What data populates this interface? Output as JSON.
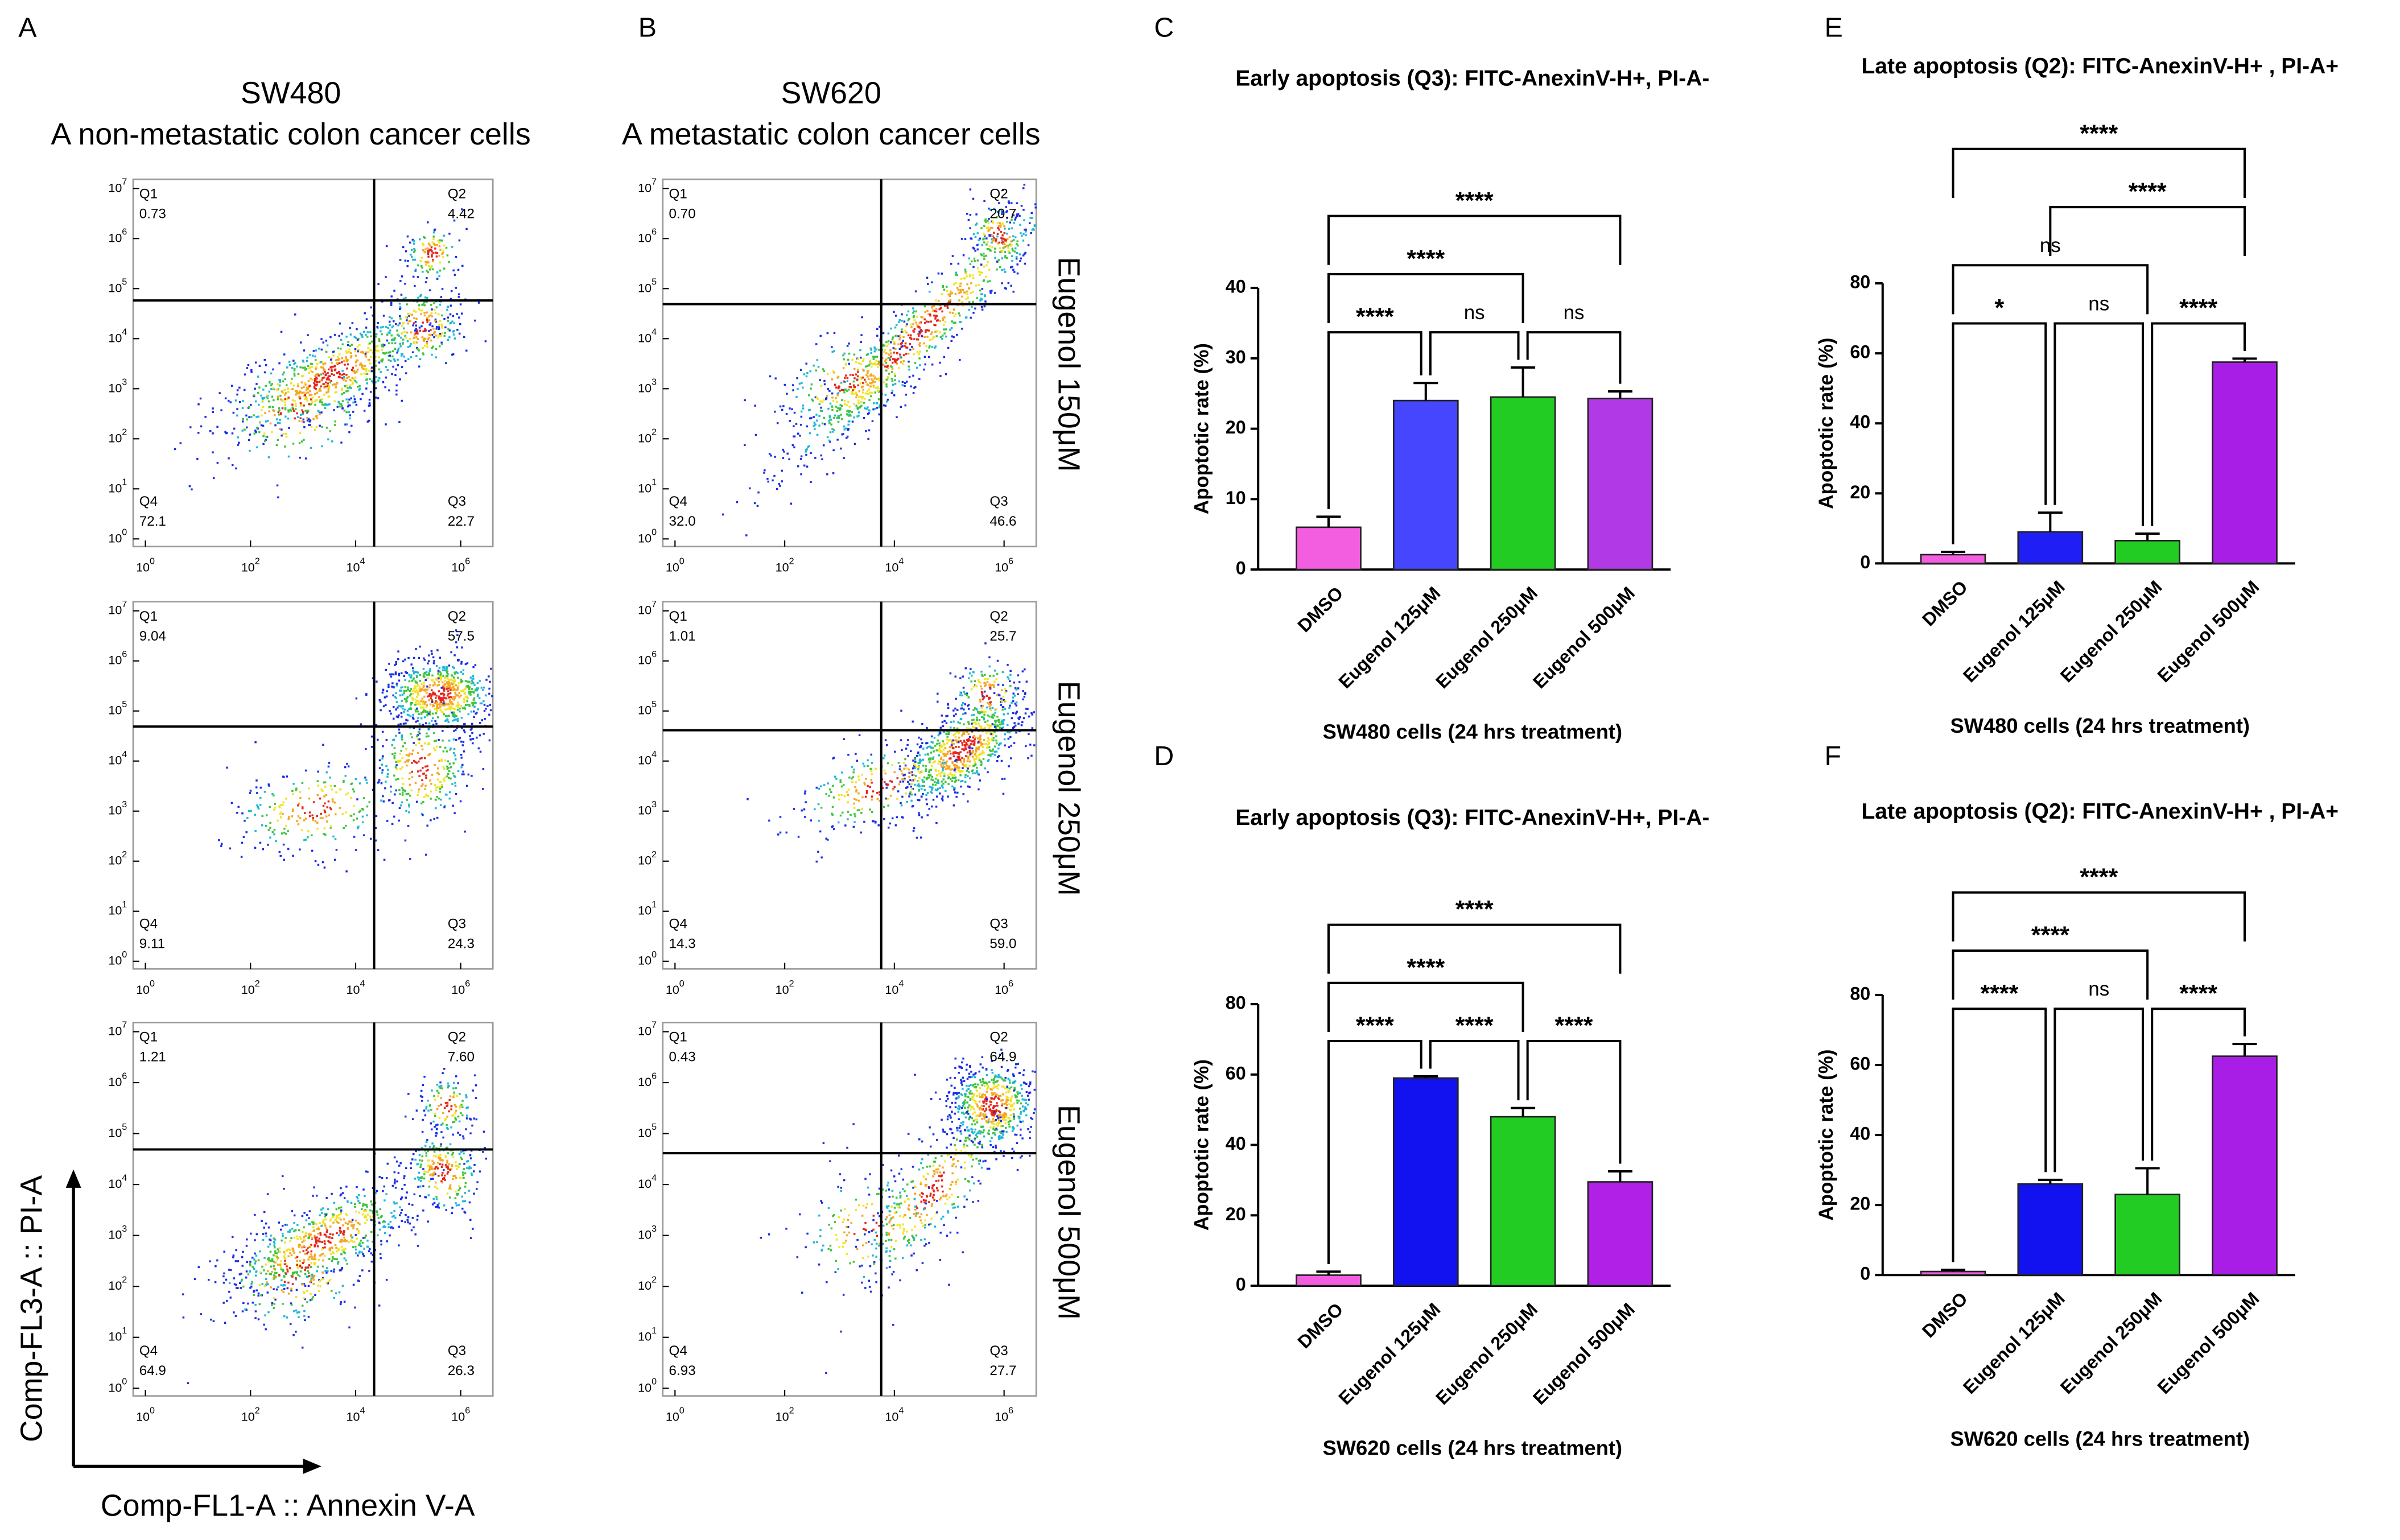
{
  "panel_labels": [
    "A",
    "B",
    "C",
    "D",
    "E",
    "F"
  ],
  "flow": {
    "columns": [
      {
        "title": "SW480",
        "subtitle": "A non-metastatic colon cancer cells"
      },
      {
        "title": "SW620",
        "subtitle": "A metastatic colon cancer cells"
      }
    ],
    "row_labels": [
      "Eugenol 150μM",
      "Eugenol 250μM",
      "Eugenol 500μM"
    ],
    "x_axis_label": "Comp-FL1-A :: Annexin V-A",
    "y_axis_label": "Comp-FL3-A :: PI-A",
    "tick_base": "10",
    "x_tick_exponents": [
      "0",
      "2",
      "4",
      "6"
    ],
    "y_tick_exponents": [
      "0",
      "1",
      "2",
      "3",
      "4",
      "5",
      "6",
      "7"
    ],
    "quadrant_names": [
      "Q1",
      "Q2",
      "Q3",
      "Q4"
    ],
    "plots": [
      [
        [
          "0.73",
          "4.42",
          "22.7",
          "72.1"
        ],
        [
          "9.04",
          "57.5",
          "24.3",
          "9.11"
        ],
        [
          "1.21",
          "7.60",
          "26.3",
          "64.9"
        ]
      ],
      [
        [
          "0.70",
          "20.7",
          "46.6",
          "32.0"
        ],
        [
          "1.01",
          "25.7",
          "59.0",
          "14.3"
        ],
        [
          "0.43",
          "64.9",
          "27.7",
          "6.93"
        ]
      ]
    ]
  },
  "chart_data": [
    {
      "type": "bar",
      "title": "Early apoptosis (Q3): FITC-AnexinV-H+, PI-A-",
      "xlabel": "SW480 cells (24 hrs treatment)",
      "ylabel": "Apoptotic rate (%)",
      "categories": [
        "DMSO",
        "Eugenol 125μM",
        "Eugenol 250μM",
        "Eugenol 500μM"
      ],
      "values": [
        6,
        24,
        24.5,
        24.3
      ],
      "errors": [
        1.5,
        2.5,
        4.2,
        1
      ],
      "colors": [
        "#f35ee0",
        "#4646ff",
        "#22cc22",
        "#b23ae6"
      ],
      "ylim": [
        0,
        40
      ],
      "yticks": [
        0,
        10,
        20,
        30,
        40
      ],
      "comparisons": [
        {
          "pair": [
            0,
            1
          ],
          "label": "****"
        },
        {
          "pair": [
            1,
            2
          ],
          "label": "ns"
        },
        {
          "pair": [
            2,
            3
          ],
          "label": "ns"
        },
        {
          "pair": [
            0,
            2
          ],
          "label": "****"
        },
        {
          "pair": [
            0,
            3
          ],
          "label": "****"
        }
      ]
    },
    {
      "type": "bar",
      "title": "Early apoptosis (Q3): FITC-AnexinV-H+, PI-A-",
      "xlabel": "SW620 cells (24 hrs treatment)",
      "ylabel": "Apoptotic rate (%)",
      "categories": [
        "DMSO",
        "Eugenol 125μM",
        "Eugenol 250μM",
        "Eugenol 500μM"
      ],
      "values": [
        3,
        59,
        48,
        29.5
      ],
      "errors": [
        1,
        0.5,
        2.5,
        3
      ],
      "colors": [
        "#f35ee0",
        "#1212f0",
        "#22cc22",
        "#b020e6"
      ],
      "ylim": [
        0,
        80
      ],
      "yticks": [
        0,
        20,
        40,
        60,
        80
      ],
      "comparisons": [
        {
          "pair": [
            0,
            1
          ],
          "label": "****"
        },
        {
          "pair": [
            1,
            2
          ],
          "label": "****"
        },
        {
          "pair": [
            2,
            3
          ],
          "label": "****"
        },
        {
          "pair": [
            0,
            2
          ],
          "label": "****"
        },
        {
          "pair": [
            0,
            3
          ],
          "label": "****"
        }
      ]
    },
    {
      "type": "bar",
      "title": "Late apoptosis (Q2): FITC-AnexinV-H+ , PI-A+",
      "xlabel": "SW480 cells (24 hrs treatment)",
      "ylabel": "Apoptotic rate (%)",
      "categories": [
        "DMSO",
        "Eugenol 125μM",
        "Eugenol 250μM",
        "Eugenol 500μM"
      ],
      "values": [
        2.5,
        9,
        6.5,
        57.5
      ],
      "errors": [
        0.8,
        5.5,
        2,
        1
      ],
      "colors": [
        "#f35ee0",
        "#1f1ff5",
        "#22cc22",
        "#a81ee6"
      ],
      "ylim": [
        0,
        80
      ],
      "yticks": [
        0,
        20,
        40,
        60,
        80
      ],
      "comparisons": [
        {
          "pair": [
            0,
            1
          ],
          "label": "*"
        },
        {
          "pair": [
            1,
            2
          ],
          "label": "ns"
        },
        {
          "pair": [
            2,
            3
          ],
          "label": "****"
        },
        {
          "pair": [
            0,
            2
          ],
          "label": "ns"
        },
        {
          "pair": [
            1,
            3
          ],
          "label": "****"
        },
        {
          "pair": [
            0,
            3
          ],
          "label": "****"
        }
      ]
    },
    {
      "type": "bar",
      "title": "Late apoptosis (Q2): FITC-AnexinV-H+ , PI-A+",
      "xlabel": "SW620 cells (24 hrs treatment)",
      "ylabel": "Apoptotic rate (%)",
      "categories": [
        "DMSO",
        "Eugenol 125μM",
        "Eugenol 250μM",
        "Eugenol 500μM"
      ],
      "values": [
        1,
        26,
        23,
        62.5
      ],
      "errors": [
        0.5,
        1.2,
        7.5,
        3.5
      ],
      "colors": [
        "#f35ee0",
        "#1212f0",
        "#22cc22",
        "#a81ee6"
      ],
      "ylim": [
        0,
        80
      ],
      "yticks": [
        0,
        20,
        40,
        60,
        80
      ],
      "comparisons": [
        {
          "pair": [
            0,
            1
          ],
          "label": "****"
        },
        {
          "pair": [
            1,
            2
          ],
          "label": "ns"
        },
        {
          "pair": [
            2,
            3
          ],
          "label": "****"
        },
        {
          "pair": [
            0,
            2
          ],
          "label": "****"
        },
        {
          "pair": [
            0,
            3
          ],
          "label": "****"
        }
      ]
    }
  ]
}
